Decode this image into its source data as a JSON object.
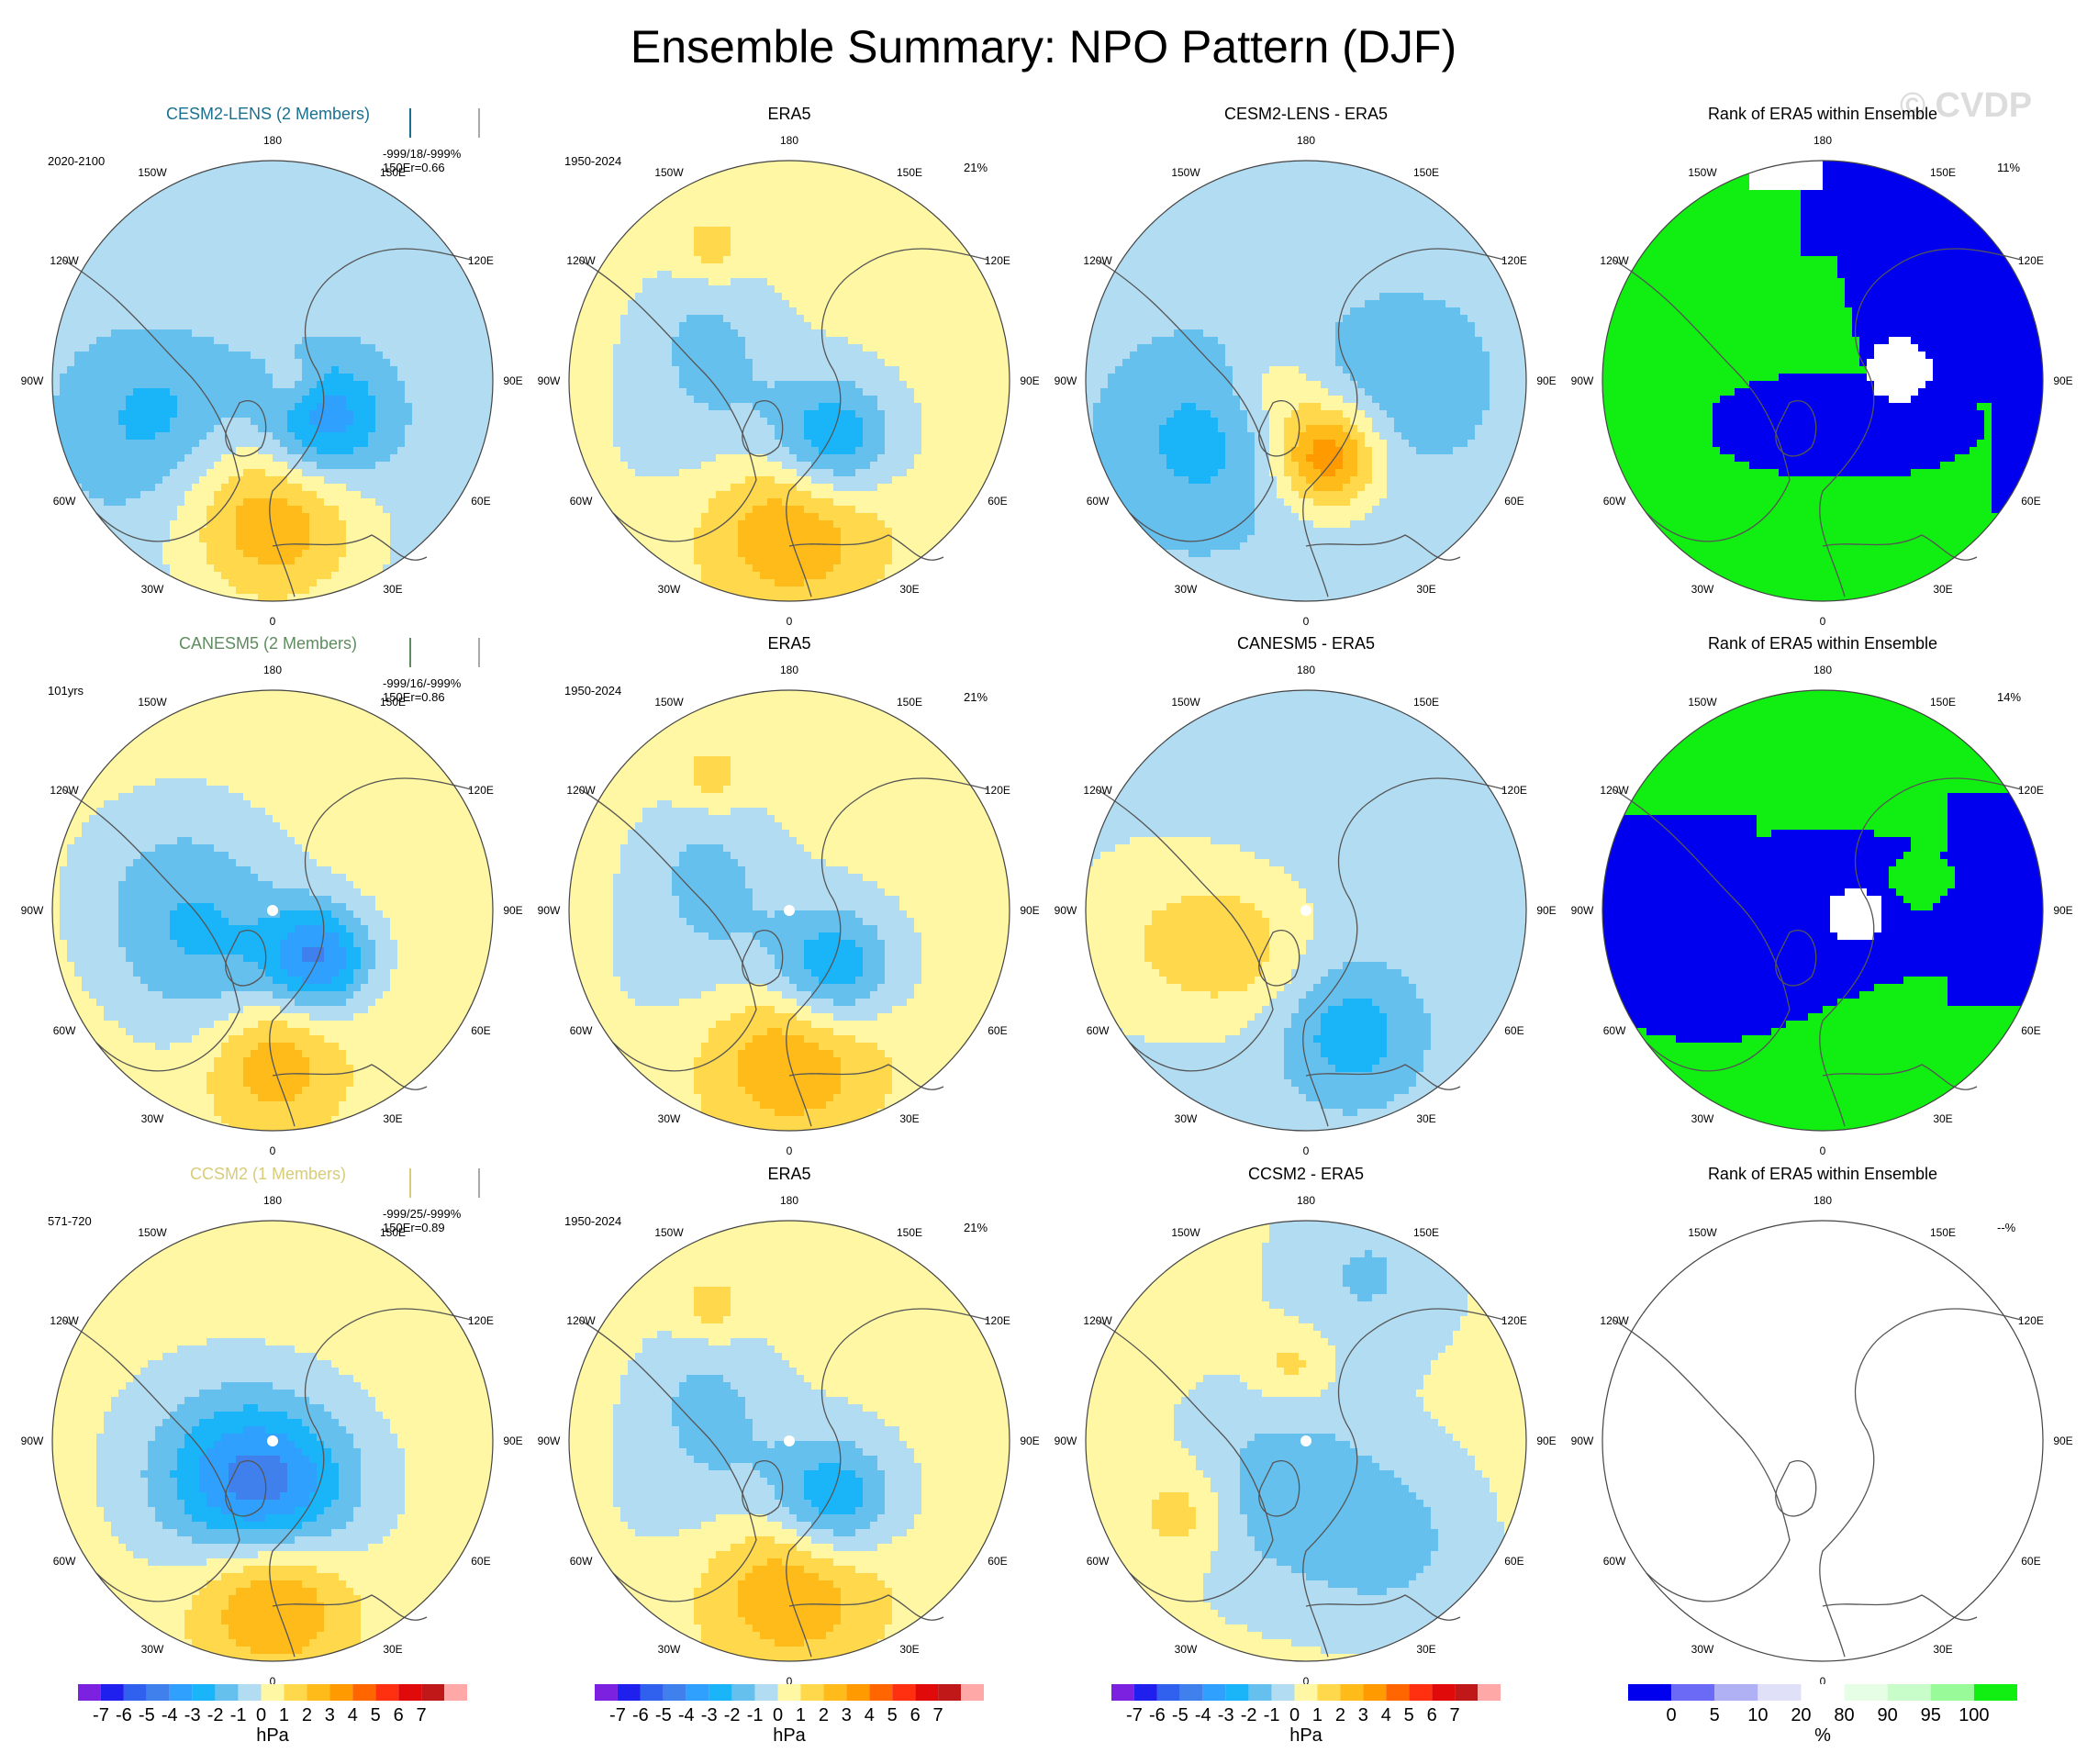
{
  "title": "Ensemble Summary: NPO Pattern (DJF)",
  "watermark": "© CVDP",
  "longitude_labels": [
    "180",
    "150E",
    "120E",
    "90E",
    "60E",
    "30E",
    "0",
    "30W",
    "60W",
    "90W",
    "120W",
    "150W"
  ],
  "colors": {
    "model_title": [
      "#1a7090",
      "#5e8c5e",
      "#d8cc78"
    ],
    "bar_box": [
      "#1a7090",
      "#5e8c5e",
      "#d8cc78"
    ],
    "hpa": [
      "#7c21e0",
      "#2020ee",
      "#3060ee",
      "#3f80ec",
      "#30a0ff",
      "#1ab4f8",
      "#66c0ee",
      "#b2dcf2",
      "#fff7a4",
      "#ffd84c",
      "#ffbb1a",
      "#ff9a00",
      "#ff6600",
      "#ff3010",
      "#e00a0a",
      "#c01818",
      "#ffa8a8"
    ],
    "rank": [
      "#0000ee",
      "#6a6af6",
      "#b0b0f4",
      "#e0e0f8",
      "#ffffff",
      "#e6fde6",
      "#c8fcc8",
      "#98fa98",
      "#11ee11"
    ]
  },
  "rows": [
    {
      "model": "CESM2-LENS (2 Members)",
      "period": "2020-2100",
      "stats_line1": "-999/18/-999%",
      "stats_line2": "150Er=0.66",
      "diff_title": "CESM2-LENS - ERA5",
      "era5_title": "ERA5",
      "era5_period": "1950-2024",
      "era5_pct": "21%",
      "rank_title": "Rank of ERA5 within Ensemble",
      "rank_pct": "11%"
    },
    {
      "model": "CANESM5 (2 Members)",
      "period": "101yrs",
      "stats_line1": "-999/16/-999%",
      "stats_line2": "150Er=0.86",
      "diff_title": "CANESM5 - ERA5",
      "era5_title": "ERA5",
      "era5_period": "1950-2024",
      "era5_pct": "21%",
      "rank_title": "Rank of ERA5 within Ensemble",
      "rank_pct": "14%"
    },
    {
      "model": "CCSM2 (1 Members)",
      "period": "571-720",
      "stats_line1": "-999/25/-999%",
      "stats_line2": "150Er=0.89",
      "diff_title": "CCSM2 - ERA5",
      "era5_title": "ERA5",
      "era5_period": "1950-2024",
      "era5_pct": "21%",
      "rank_title": "Rank of ERA5 within Ensemble",
      "rank_pct": "--%"
    }
  ],
  "colorbars": {
    "hpa_ticks": [
      "-7",
      "-6",
      "-5",
      "-4",
      "-3",
      "-2",
      "-1",
      "0",
      "1",
      "2",
      "3",
      "4",
      "5",
      "6",
      "7"
    ],
    "hpa_unit": "hPa",
    "rank_ticks": [
      "0",
      "5",
      "10",
      "20",
      "80",
      "90",
      "95",
      "100"
    ],
    "rank_unit": "%"
  },
  "chart_data": {
    "type": "heatmap",
    "title": "Ensemble Summary: NPO Pattern (DJF)",
    "projection": "north polar stereographic",
    "units": "hPa",
    "contour_levels": [
      -7,
      -6,
      -5,
      -4,
      -3,
      -2,
      -1,
      0,
      1,
      2,
      3,
      4,
      5,
      6,
      7
    ],
    "rank_levels": [
      0,
      5,
      10,
      20,
      80,
      90,
      95,
      100
    ],
    "maps": [
      {
        "row": 1,
        "col": 1,
        "title": "CESM2-LENS (2 Members)",
        "pattern": {
          "base": -0.6,
          "features": [
            {
              "lon": 180,
              "colat": 0.62,
              "amp": 3.4,
              "spread": 0.3
            },
            {
              "lon": 130,
              "colat": 0.3,
              "amp": -3.6,
              "spread": 0.2
            },
            {
              "lon": 250,
              "colat": 0.55,
              "amp": -1.8,
              "spread": 0.28
            },
            {
              "lon": 330,
              "colat": 0.85,
              "amp": 0.5,
              "spread": 0.3
            },
            {
              "lon": 95,
              "colat": 0.1,
              "amp": 1.4,
              "spread": 0.08
            }
          ]
        }
      },
      {
        "row": 1,
        "col": 2,
        "title": "ERA5",
        "pattern": {
          "base": 0.3,
          "features": [
            {
              "lon": 180,
              "colat": 0.6,
              "amp": 3.2,
              "spread": 0.3
            },
            {
              "lon": 145,
              "colat": 0.35,
              "amp": -3.8,
              "spread": 0.2
            },
            {
              "lon": 230,
              "colat": 0.35,
              "amp": -1.6,
              "spread": 0.3
            },
            {
              "lon": 330,
              "colat": 0.7,
              "amp": 1.4,
              "spread": 0.1
            },
            {
              "lon": 300,
              "colat": 0.45,
              "amp": -1.1,
              "spread": 0.2
            }
          ]
        }
      },
      {
        "row": 1,
        "col": 3,
        "title": "CESM2-LENS - ERA5",
        "pattern": {
          "base": -0.6,
          "features": [
            {
              "lon": 165,
              "colat": 0.35,
              "amp": 4.5,
              "spread": 0.17
            },
            {
              "lon": 240,
              "colat": 0.55,
              "amp": -1.7,
              "spread": 0.3
            },
            {
              "lon": 90,
              "colat": 0.45,
              "amp": -1.4,
              "spread": 0.25
            },
            {
              "lon": 260,
              "colat": 0.15,
              "amp": 1.3,
              "spread": 0.15
            }
          ]
        }
      },
      {
        "row": 1,
        "col": 4,
        "title": "Rank of ERA5 within Ensemble",
        "pattern": {
          "values": [
            0,
            100
          ],
          "regions": "high-rank over Atlantic/Eurasia, low-rank over Pacific/Arctic"
        }
      },
      {
        "row": 2,
        "col": 1,
        "title": "CANESM5 (2 Members)",
        "pattern": {
          "base": 0.6,
          "features": [
            {
              "lon": 180,
              "colat": 0.68,
              "amp": 2.4,
              "spread": 0.2
            },
            {
              "lon": 135,
              "colat": 0.3,
              "amp": -4.2,
              "spread": 0.17
            },
            {
              "lon": 280,
              "colat": 0.45,
              "amp": -1.7,
              "spread": 0.35
            },
            {
              "lon": 230,
              "colat": 0.35,
              "amp": -1.5,
              "spread": 0.3
            }
          ]
        }
      },
      {
        "row": 2,
        "col": 2,
        "title": "ERA5",
        "pattern": {
          "base": 0.3,
          "features": [
            {
              "lon": 180,
              "colat": 0.6,
              "amp": 3.2,
              "spread": 0.3
            },
            {
              "lon": 145,
              "colat": 0.35,
              "amp": -3.8,
              "spread": 0.2
            },
            {
              "lon": 230,
              "colat": 0.35,
              "amp": -1.6,
              "spread": 0.3
            },
            {
              "lon": 330,
              "colat": 0.7,
              "amp": 1.4,
              "spread": 0.1
            },
            {
              "lon": 300,
              "colat": 0.45,
              "amp": -1.1,
              "spread": 0.2
            }
          ]
        }
      },
      {
        "row": 2,
        "col": 3,
        "title": "CANESM5 - ERA5",
        "pattern": {
          "base": -0.4,
          "features": [
            {
              "lon": 160,
              "colat": 0.6,
              "amp": -2.2,
              "spread": 0.22
            },
            {
              "lon": 240,
              "colat": 0.35,
              "amp": 1.6,
              "spread": 0.22
            },
            {
              "lon": 260,
              "colat": 0.7,
              "amp": 1.2,
              "spread": 0.3
            }
          ]
        }
      },
      {
        "row": 2,
        "col": 4,
        "title": "Rank of ERA5 within Ensemble",
        "pattern": {
          "values": [
            0,
            100
          ],
          "regions": "low-rank band across 60N-90W to 90E, high-rank elsewhere"
        }
      },
      {
        "row": 3,
        "col": 1,
        "title": "CCSM2 (1 Members)",
        "pattern": {
          "base": 0.4,
          "features": [
            {
              "lon": 180,
              "colat": 0.68,
              "amp": 3.6,
              "spread": 0.25
            },
            {
              "lon": 180,
              "colat": 0.25,
              "amp": -4.4,
              "spread": 0.28
            },
            {
              "lon": 250,
              "colat": 0.3,
              "amp": -1.6,
              "spread": 0.3
            }
          ]
        }
      },
      {
        "row": 3,
        "col": 2,
        "title": "ERA5",
        "pattern": {
          "base": 0.3,
          "features": [
            {
              "lon": 180,
              "colat": 0.6,
              "amp": 3.2,
              "spread": 0.3
            },
            {
              "lon": 145,
              "colat": 0.35,
              "amp": -3.8,
              "spread": 0.2
            },
            {
              "lon": 230,
              "colat": 0.35,
              "amp": -1.6,
              "spread": 0.3
            },
            {
              "lon": 330,
              "colat": 0.7,
              "amp": 1.4,
              "spread": 0.1
            },
            {
              "lon": 300,
              "colat": 0.45,
              "amp": -1.1,
              "spread": 0.2
            }
          ]
        }
      },
      {
        "row": 3,
        "col": 3,
        "title": "CCSM2 - ERA5",
        "pattern": {
          "base": 0.2,
          "features": [
            {
              "lon": 200,
              "colat": 0.25,
              "amp": -1.9,
              "spread": 0.3
            },
            {
              "lon": 140,
              "colat": 0.6,
              "amp": -1.5,
              "spread": 0.25
            },
            {
              "lon": 20,
              "colat": 0.8,
              "amp": -1.3,
              "spread": 0.25
            },
            {
              "lon": 240,
              "colat": 0.65,
              "amp": 1.6,
              "spread": 0.15
            },
            {
              "lon": 350,
              "colat": 0.35,
              "amp": 1.4,
              "spread": 0.12
            }
          ]
        }
      },
      {
        "row": 3,
        "col": 4,
        "title": "Rank of ERA5 within Ensemble",
        "pattern": {
          "values": [],
          "regions": "no data"
        }
      }
    ]
  }
}
